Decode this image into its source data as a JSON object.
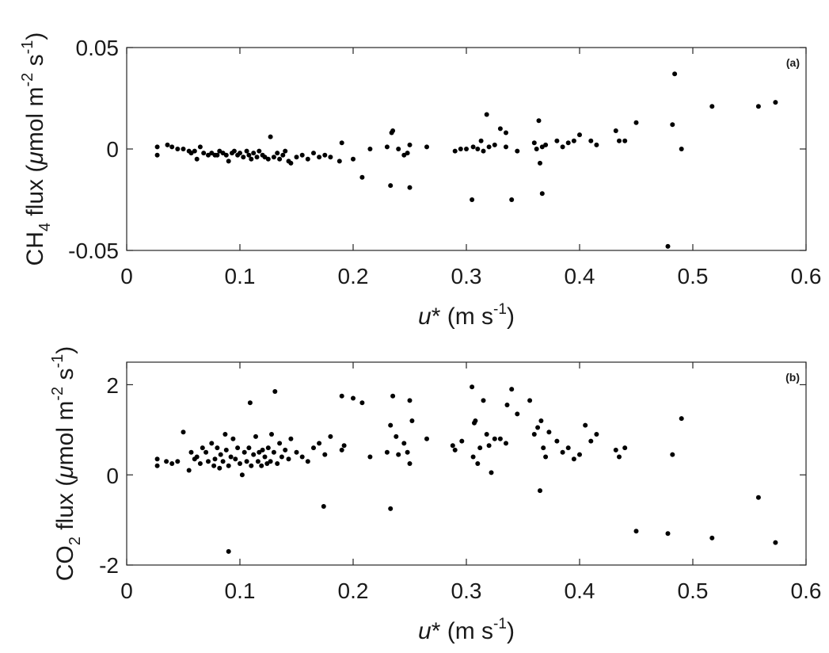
{
  "chart_data": [
    {
      "type": "scatter",
      "panel_label": "(a)",
      "xlabel": "u* (m s-1)",
      "ylabel": "CH4 flux (μmol m-2 s-1)",
      "xlim": [
        0,
        0.6
      ],
      "ylim": [
        -0.05,
        0.05
      ],
      "xticks": [
        "0",
        "0.1",
        "0.2",
        "0.3",
        "0.4",
        "0.5",
        "0.6"
      ],
      "yticks": [
        "-0.05",
        "0",
        "0.05"
      ],
      "ytick_values": [
        -0.05,
        0,
        0.05
      ],
      "grid": false,
      "marker_color": "#000000",
      "points": [
        [
          0.027,
          -0.003
        ],
        [
          0.027,
          0.001
        ],
        [
          0.036,
          0.002
        ],
        [
          0.04,
          0.001
        ],
        [
          0.045,
          0.0
        ],
        [
          0.05,
          0.0
        ],
        [
          0.055,
          -0.001
        ],
        [
          0.057,
          -0.002
        ],
        [
          0.06,
          -0.001
        ],
        [
          0.062,
          -0.005
        ],
        [
          0.065,
          0.001
        ],
        [
          0.068,
          -0.002
        ],
        [
          0.072,
          -0.003
        ],
        [
          0.075,
          -0.002
        ],
        [
          0.078,
          -0.003
        ],
        [
          0.08,
          -0.003
        ],
        [
          0.082,
          -0.001
        ],
        [
          0.085,
          -0.002
        ],
        [
          0.088,
          -0.003
        ],
        [
          0.09,
          -0.006
        ],
        [
          0.093,
          -0.002
        ],
        [
          0.095,
          -0.001
        ],
        [
          0.098,
          -0.003
        ],
        [
          0.1,
          -0.002
        ],
        [
          0.103,
          -0.004
        ],
        [
          0.106,
          -0.001
        ],
        [
          0.108,
          -0.003
        ],
        [
          0.11,
          -0.005
        ],
        [
          0.112,
          -0.002
        ],
        [
          0.115,
          -0.004
        ],
        [
          0.117,
          -0.001
        ],
        [
          0.12,
          -0.003
        ],
        [
          0.122,
          -0.004
        ],
        [
          0.125,
          -0.005
        ],
        [
          0.127,
          0.006
        ],
        [
          0.13,
          -0.004
        ],
        [
          0.133,
          -0.002
        ],
        [
          0.135,
          -0.005
        ],
        [
          0.138,
          -0.003
        ],
        [
          0.14,
          -0.001
        ],
        [
          0.143,
          -0.006
        ],
        [
          0.145,
          -0.007
        ],
        [
          0.15,
          -0.004
        ],
        [
          0.155,
          -0.003
        ],
        [
          0.16,
          -0.005
        ],
        [
          0.165,
          -0.002
        ],
        [
          0.17,
          -0.004
        ],
        [
          0.175,
          -0.003
        ],
        [
          0.18,
          -0.004
        ],
        [
          0.188,
          -0.006
        ],
        [
          0.19,
          0.003
        ],
        [
          0.2,
          -0.005
        ],
        [
          0.208,
          -0.014
        ],
        [
          0.215,
          0.0
        ],
        [
          0.23,
          0.001
        ],
        [
          0.233,
          -0.018
        ],
        [
          0.234,
          0.008
        ],
        [
          0.235,
          0.009
        ],
        [
          0.24,
          0.0
        ],
        [
          0.245,
          -0.003
        ],
        [
          0.248,
          -0.002
        ],
        [
          0.25,
          -0.019
        ],
        [
          0.25,
          0.002
        ],
        [
          0.265,
          0.001
        ],
        [
          0.29,
          -0.001
        ],
        [
          0.295,
          0.0
        ],
        [
          0.3,
          0.0
        ],
        [
          0.305,
          -0.025
        ],
        [
          0.306,
          0.001
        ],
        [
          0.31,
          0.0
        ],
        [
          0.313,
          0.004
        ],
        [
          0.315,
          -0.001
        ],
        [
          0.318,
          0.017
        ],
        [
          0.32,
          0.001
        ],
        [
          0.325,
          0.002
        ],
        [
          0.33,
          0.01
        ],
        [
          0.335,
          0.008
        ],
        [
          0.335,
          0.001
        ],
        [
          0.34,
          -0.025
        ],
        [
          0.345,
          -0.001
        ],
        [
          0.36,
          0.003
        ],
        [
          0.362,
          0.0
        ],
        [
          0.364,
          0.014
        ],
        [
          0.365,
          -0.007
        ],
        [
          0.367,
          0.001
        ],
        [
          0.367,
          -0.022
        ],
        [
          0.37,
          0.002
        ],
        [
          0.38,
          0.004
        ],
        [
          0.385,
          0.001
        ],
        [
          0.39,
          0.003
        ],
        [
          0.395,
          0.004
        ],
        [
          0.4,
          0.007
        ],
        [
          0.41,
          0.004
        ],
        [
          0.415,
          0.002
        ],
        [
          0.432,
          0.009
        ],
        [
          0.435,
          0.004
        ],
        [
          0.44,
          0.004
        ],
        [
          0.45,
          0.013
        ],
        [
          0.478,
          -0.048
        ],
        [
          0.482,
          0.012
        ],
        [
          0.484,
          0.037
        ],
        [
          0.49,
          0.0
        ],
        [
          0.517,
          0.021
        ],
        [
          0.558,
          0.021
        ],
        [
          0.573,
          0.023
        ]
      ]
    },
    {
      "type": "scatter",
      "panel_label": "(b)",
      "xlabel": "u* (m s-1)",
      "ylabel": "CO2 flux (μmol m-2 s-1)",
      "xlim": [
        0,
        0.6
      ],
      "ylim": [
        -2,
        2.5
      ],
      "xticks": [
        "0",
        "0.1",
        "0.2",
        "0.3",
        "0.4",
        "0.5",
        "0.6"
      ],
      "yticks": [
        "-2",
        "0",
        "2"
      ],
      "ytick_values": [
        -2,
        0,
        2
      ],
      "grid": false,
      "marker_color": "#000000",
      "points": [
        [
          0.027,
          0.2
        ],
        [
          0.027,
          0.35
        ],
        [
          0.035,
          0.3
        ],
        [
          0.04,
          0.25
        ],
        [
          0.045,
          0.3
        ],
        [
          0.05,
          0.95
        ],
        [
          0.055,
          0.1
        ],
        [
          0.057,
          0.5
        ],
        [
          0.06,
          0.35
        ],
        [
          0.062,
          0.4
        ],
        [
          0.065,
          0.25
        ],
        [
          0.067,
          0.6
        ],
        [
          0.07,
          0.5
        ],
        [
          0.072,
          0.3
        ],
        [
          0.075,
          0.7
        ],
        [
          0.077,
          0.2
        ],
        [
          0.078,
          0.35
        ],
        [
          0.08,
          0.6
        ],
        [
          0.082,
          0.15
        ],
        [
          0.083,
          0.45
        ],
        [
          0.085,
          0.3
        ],
        [
          0.087,
          0.9
        ],
        [
          0.088,
          0.55
        ],
        [
          0.09,
          0.2
        ],
        [
          0.09,
          -1.7
        ],
        [
          0.092,
          0.4
        ],
        [
          0.094,
          0.8
        ],
        [
          0.096,
          0.35
        ],
        [
          0.098,
          0.6
        ],
        [
          0.1,
          0.25
        ],
        [
          0.102,
          0.0
        ],
        [
          0.104,
          0.5
        ],
        [
          0.106,
          0.3
        ],
        [
          0.108,
          0.6
        ],
        [
          0.109,
          1.6
        ],
        [
          0.11,
          0.2
        ],
        [
          0.112,
          0.45
        ],
        [
          0.114,
          0.85
        ],
        [
          0.116,
          0.3
        ],
        [
          0.117,
          0.5
        ],
        [
          0.119,
          0.2
        ],
        [
          0.12,
          0.55
        ],
        [
          0.122,
          0.4
        ],
        [
          0.124,
          0.25
        ],
        [
          0.125,
          0.6
        ],
        [
          0.127,
          0.3
        ],
        [
          0.128,
          0.9
        ],
        [
          0.13,
          0.5
        ],
        [
          0.131,
          1.85
        ],
        [
          0.133,
          0.25
        ],
        [
          0.135,
          0.7
        ],
        [
          0.137,
          0.4
        ],
        [
          0.14,
          0.55
        ],
        [
          0.143,
          0.35
        ],
        [
          0.145,
          0.8
        ],
        [
          0.15,
          0.5
        ],
        [
          0.155,
          0.4
        ],
        [
          0.16,
          0.3
        ],
        [
          0.165,
          0.6
        ],
        [
          0.17,
          0.7
        ],
        [
          0.174,
          -0.7
        ],
        [
          0.175,
          0.45
        ],
        [
          0.18,
          0.85
        ],
        [
          0.19,
          0.55
        ],
        [
          0.19,
          1.75
        ],
        [
          0.192,
          0.65
        ],
        [
          0.2,
          1.7
        ],
        [
          0.208,
          1.6
        ],
        [
          0.215,
          0.4
        ],
        [
          0.23,
          0.5
        ],
        [
          0.233,
          1.1
        ],
        [
          0.233,
          -0.75
        ],
        [
          0.235,
          1.75
        ],
        [
          0.238,
          0.85
        ],
        [
          0.24,
          0.45
        ],
        [
          0.245,
          0.7
        ],
        [
          0.248,
          0.5
        ],
        [
          0.25,
          1.65
        ],
        [
          0.25,
          0.25
        ],
        [
          0.252,
          1.2
        ],
        [
          0.265,
          0.8
        ],
        [
          0.288,
          0.65
        ],
        [
          0.29,
          0.55
        ],
        [
          0.296,
          0.75
        ],
        [
          0.305,
          1.95
        ],
        [
          0.306,
          0.4
        ],
        [
          0.307,
          1.15
        ],
        [
          0.308,
          1.2
        ],
        [
          0.31,
          0.25
        ],
        [
          0.312,
          0.6
        ],
        [
          0.315,
          1.65
        ],
        [
          0.318,
          0.9
        ],
        [
          0.32,
          0.65
        ],
        [
          0.322,
          0.05
        ],
        [
          0.325,
          0.8
        ],
        [
          0.33,
          0.8
        ],
        [
          0.335,
          0.7
        ],
        [
          0.336,
          1.55
        ],
        [
          0.34,
          1.9
        ],
        [
          0.345,
          1.35
        ],
        [
          0.356,
          1.65
        ],
        [
          0.36,
          0.9
        ],
        [
          0.363,
          1.05
        ],
        [
          0.365,
          -0.35
        ],
        [
          0.366,
          1.2
        ],
        [
          0.368,
          0.6
        ],
        [
          0.37,
          0.4
        ],
        [
          0.373,
          0.95
        ],
        [
          0.38,
          0.75
        ],
        [
          0.385,
          0.5
        ],
        [
          0.39,
          0.6
        ],
        [
          0.395,
          0.35
        ],
        [
          0.4,
          0.45
        ],
        [
          0.405,
          1.1
        ],
        [
          0.41,
          0.75
        ],
        [
          0.415,
          0.9
        ],
        [
          0.432,
          0.55
        ],
        [
          0.435,
          0.4
        ],
        [
          0.44,
          0.6
        ],
        [
          0.45,
          -1.25
        ],
        [
          0.478,
          -1.3
        ],
        [
          0.482,
          0.45
        ],
        [
          0.49,
          1.25
        ],
        [
          0.517,
          -1.4
        ],
        [
          0.558,
          -0.5
        ],
        [
          0.573,
          -1.5
        ]
      ]
    }
  ]
}
